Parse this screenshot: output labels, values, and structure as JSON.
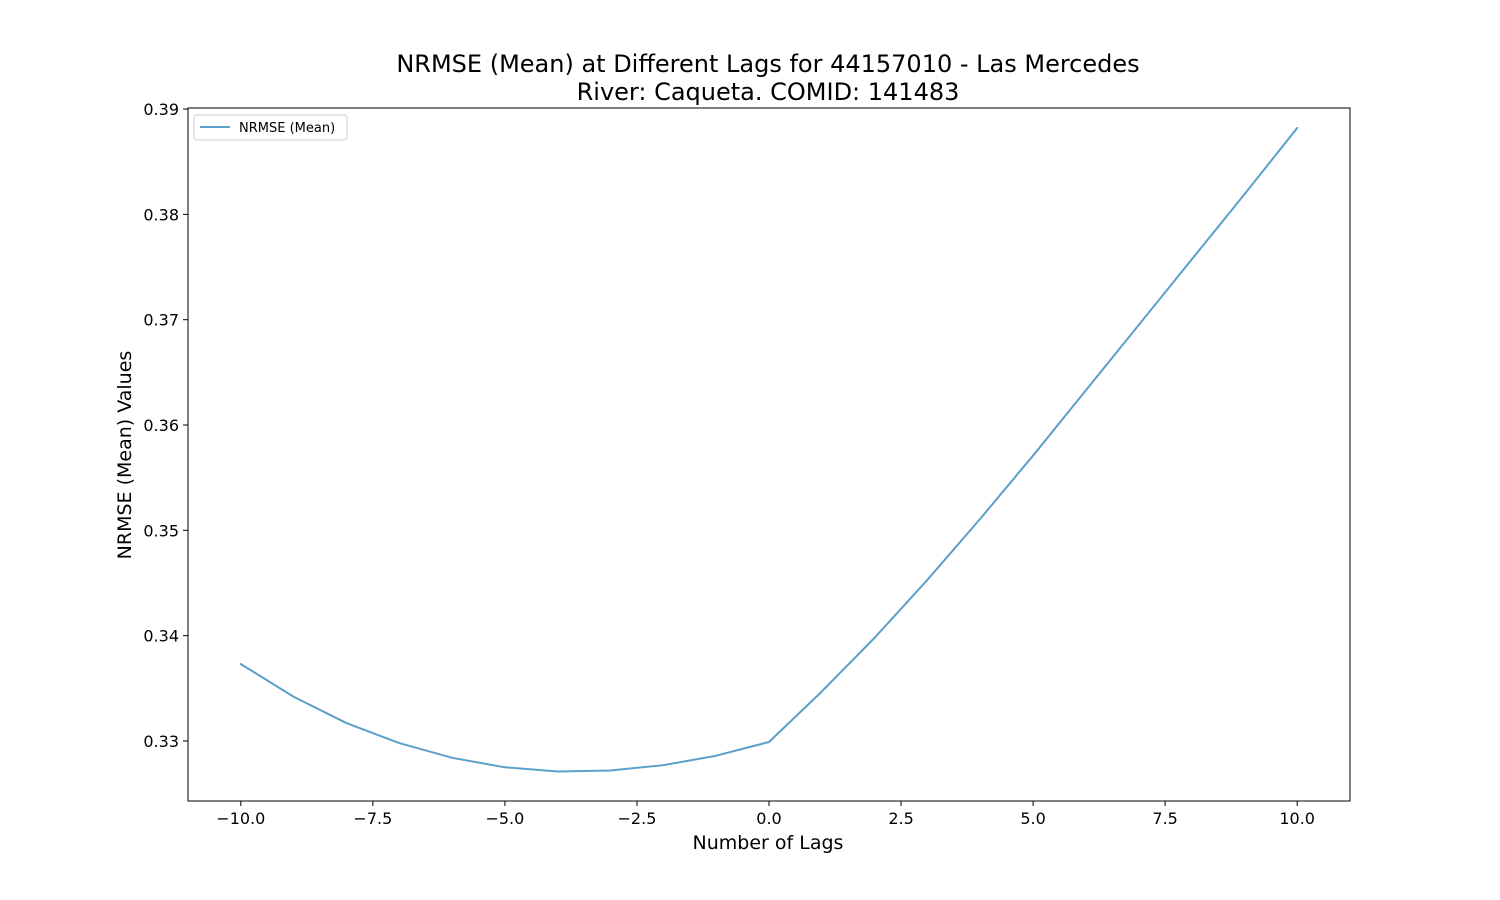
{
  "chart_data": {
    "type": "line",
    "title_line1": "NRMSE (Mean) at Different Lags for 44157010 - Las Mercedes",
    "title_line2": "River: Caqueta. COMID: 141483",
    "xlabel": "Number of Lags",
    "ylabel": "NRMSE (Mean) Values",
    "xlim": [
      -11,
      11
    ],
    "ylim": [
      0.3243,
      0.3901
    ],
    "x_ticks": [
      -10,
      -7.5,
      -5,
      -2.5,
      0,
      2.5,
      5,
      7.5,
      10
    ],
    "x_tick_labels": [
      "−10.0",
      "−7.5",
      "−5.0",
      "−2.5",
      "0.0",
      "2.5",
      "5.0",
      "7.5",
      "10.0"
    ],
    "y_ticks": [
      0.33,
      0.34,
      0.35,
      0.36,
      0.37,
      0.38,
      0.39
    ],
    "y_tick_labels": [
      "0.33",
      "0.34",
      "0.35",
      "0.36",
      "0.37",
      "0.38",
      "0.39"
    ],
    "legend_position": "upper-left",
    "grid": false,
    "series": [
      {
        "name": "NRMSE (Mean)",
        "color": "#5b9fcb",
        "x": [
          -10,
          -9,
          -8,
          -7,
          -6,
          -5,
          -4,
          -3,
          -2,
          -1,
          0,
          1,
          2,
          3,
          4,
          5,
          6,
          7,
          8,
          9,
          10
        ],
        "y": [
          0.3373,
          0.3342,
          0.3317,
          0.3298,
          0.3284,
          0.3275,
          0.3271,
          0.3272,
          0.3277,
          0.3286,
          0.3299,
          0.3347,
          0.3398,
          0.3453,
          0.3511,
          0.3571,
          0.3633,
          0.3695,
          0.3757,
          0.3819,
          0.3882
        ]
      }
    ]
  }
}
